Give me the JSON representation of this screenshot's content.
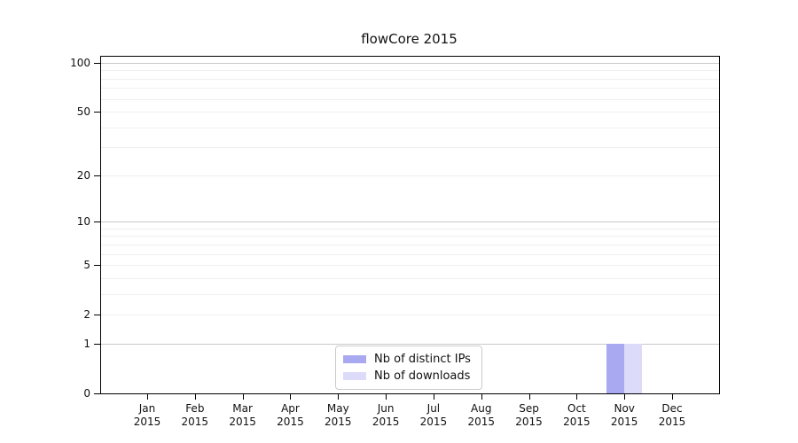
{
  "title": "flowCore 2015",
  "chart_data": {
    "type": "bar",
    "title": "flowCore 2015",
    "categories": [
      "Jan",
      "Feb",
      "Mar",
      "Apr",
      "May",
      "Jun",
      "Jul",
      "Aug",
      "Sep",
      "Oct",
      "Nov",
      "Dec"
    ],
    "x_year_label": "2015",
    "series": [
      {
        "name": "Nb of distinct IPs",
        "color": "#a9a9f2",
        "values": [
          0,
          0,
          0,
          0,
          0,
          0,
          0,
          0,
          0,
          0,
          1,
          0
        ]
      },
      {
        "name": "Nb of downloads",
        "color": "#dcdcfa",
        "values": [
          0,
          0,
          0,
          0,
          0,
          0,
          0,
          0,
          0,
          0,
          1,
          0
        ]
      }
    ],
    "xlabel": "",
    "ylabel": "",
    "ylim": [
      0,
      100
    ],
    "y_scale": "log1p",
    "y_ticks": [
      0,
      1,
      2,
      5,
      10,
      20,
      50,
      100
    ],
    "y_major_gridlines": [
      1,
      10,
      100
    ],
    "y_minor_gridlines": [
      2,
      3,
      4,
      5,
      6,
      7,
      8,
      9,
      20,
      30,
      40,
      50,
      60,
      70,
      80,
      90
    ],
    "grid": true,
    "legend_position": "bottom-center"
  },
  "legend": {
    "items": [
      {
        "label": "Nb of distinct IPs",
        "color": "#a9a9f2"
      },
      {
        "label": "Nb of downloads",
        "color": "#dcdcfa"
      }
    ]
  },
  "colors": {
    "background": "#ffffff",
    "spine": "#000000",
    "gridline_major": "#c9c9c9",
    "gridline_minor": "#efefef",
    "text": "#111111",
    "legend_border": "#cccccc"
  }
}
